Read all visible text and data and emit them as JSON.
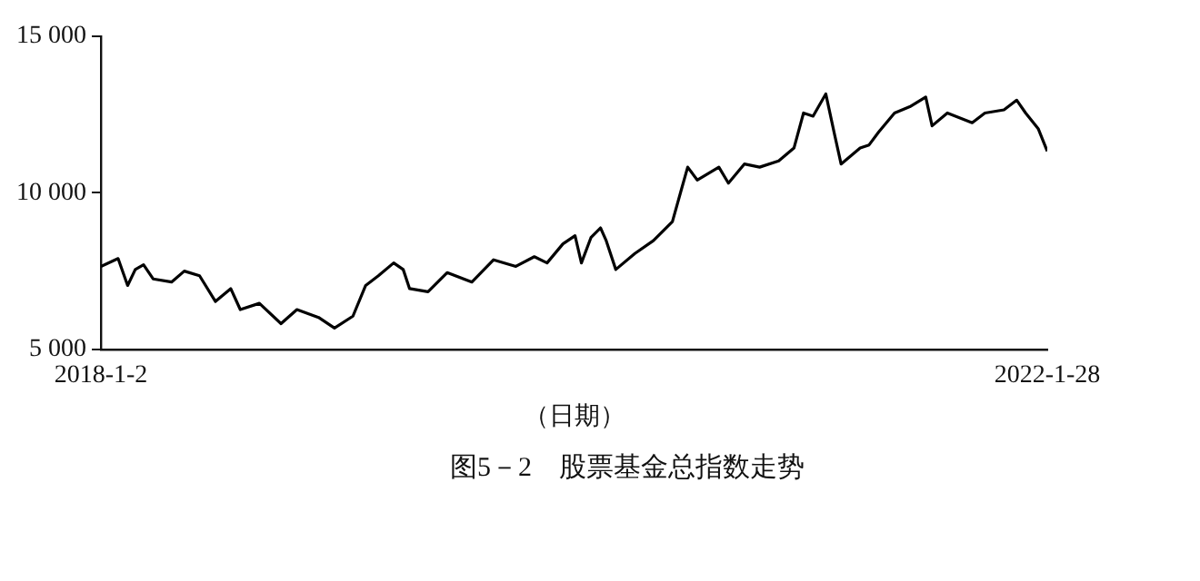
{
  "chart_data": {
    "type": "line",
    "title": "图5－2　股票基金总指数走势",
    "xlabel": "（日期）",
    "x": [
      "2018-01-02",
      "2018-01-29",
      "2018-02-13",
      "2018-02-25",
      "2018-03-10",
      "2018-03-25",
      "2018-04-23",
      "2018-05-13",
      "2018-06-06",
      "2018-07-01",
      "2018-07-25",
      "2018-08-09",
      "2018-09-08",
      "2018-10-12",
      "2018-11-06",
      "2018-12-10",
      "2019-01-04",
      "2019-02-02",
      "2019-02-22",
      "2019-03-14",
      "2019-04-07",
      "2019-04-22",
      "2019-05-02",
      "2019-05-31",
      "2019-06-30",
      "2019-08-08",
      "2019-09-11",
      "2019-10-16",
      "2019-11-14",
      "2019-12-04",
      "2019-12-29",
      "2020-01-17",
      "2020-01-27",
      "2020-02-11",
      "2020-02-26",
      "2020-03-06",
      "2020-03-21",
      "2020-04-20",
      "2020-05-19",
      "2020-06-18",
      "2020-07-02",
      "2020-07-12",
      "2020-07-27",
      "2020-08-30",
      "2020-09-14",
      "2020-10-09",
      "2020-11-02",
      "2020-12-02",
      "2020-12-26",
      "2021-01-10",
      "2021-01-25",
      "2021-02-14",
      "2021-02-28",
      "2021-03-10",
      "2021-04-09",
      "2021-04-23",
      "2021-05-08",
      "2021-06-02",
      "2021-06-26",
      "2021-07-21",
      "2021-07-31",
      "2021-08-24",
      "2021-10-02",
      "2021-10-22",
      "2021-11-21",
      "2021-12-11",
      "2021-12-25",
      "2022-01-14",
      "2022-01-28"
    ],
    "series": [
      {
        "color": "#000000",
        "values": [
          7650,
          7900,
          7040,
          7550,
          7700,
          7250,
          7150,
          7500,
          7350,
          6530,
          6940,
          6270,
          6470,
          5820,
          6270,
          6020,
          5680,
          6060,
          7040,
          7350,
          7760,
          7550,
          6940,
          6840,
          7450,
          7150,
          7860,
          7650,
          7960,
          7760,
          8370,
          8630,
          7760,
          8570,
          8880,
          8470,
          7550,
          8060,
          8470,
          9080,
          10100,
          10820,
          10410,
          10820,
          10310,
          10920,
          10820,
          11020,
          11430,
          12550,
          12450,
          13160,
          11840,
          10920,
          11430,
          11530,
          11940,
          12550,
          12750,
          13060,
          12140,
          12550,
          12240,
          12550,
          12650,
          12960,
          12550,
          12040,
          11330
        ]
      }
    ],
    "xlim": [
      "2018-01-02",
      "2022-01-28"
    ],
    "xticks": [
      {
        "value": "2018-01-02",
        "label": "2018-1-2"
      },
      {
        "value": "2022-01-28",
        "label": "2022-1-28"
      }
    ],
    "ylim": [
      5000,
      15000
    ],
    "yticks": [
      {
        "value": 5000,
        "label": "5 000"
      },
      {
        "value": 10000,
        "label": "10 000"
      },
      {
        "value": 15000,
        "label": "15 000"
      }
    ],
    "grid": false,
    "legend": false,
    "marker": "none",
    "line_style": "solid"
  }
}
